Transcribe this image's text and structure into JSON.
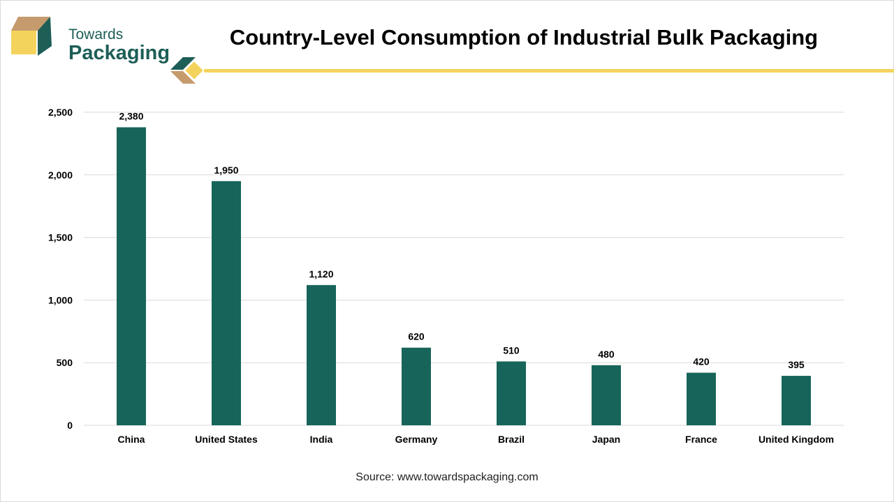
{
  "brand": {
    "line1": "Towards",
    "line2": "Packaging"
  },
  "colors": {
    "bar": "#17645a",
    "brand_green": "#1d5e57",
    "accent_yellow": "#f3d35c",
    "accent_tan": "#c59b6d",
    "grid": "#d9d9d9"
  },
  "chart_data": {
    "type": "bar",
    "title": "Country-Level Consumption of Industrial Bulk Packaging",
    "categories": [
      "China",
      "United States",
      "India",
      "Germany",
      "Brazil",
      "Japan",
      "France",
      "United Kingdom"
    ],
    "values": [
      2380,
      1950,
      1120,
      620,
      510,
      480,
      420,
      395
    ],
    "value_labels": [
      "2,380",
      "1,950",
      "1,120",
      "620",
      "510",
      "480",
      "420",
      "395"
    ],
    "y_ticks": [
      0,
      500,
      1000,
      1500,
      2000,
      2500
    ],
    "y_tick_labels": [
      "0",
      "500",
      "1,000",
      "1,500",
      "2,000",
      "2,500"
    ],
    "ylim": [
      0,
      2500
    ],
    "xlabel": "",
    "ylabel": "",
    "grid": true,
    "legend": "none"
  },
  "source": "Source: www.towardspackaging.com"
}
